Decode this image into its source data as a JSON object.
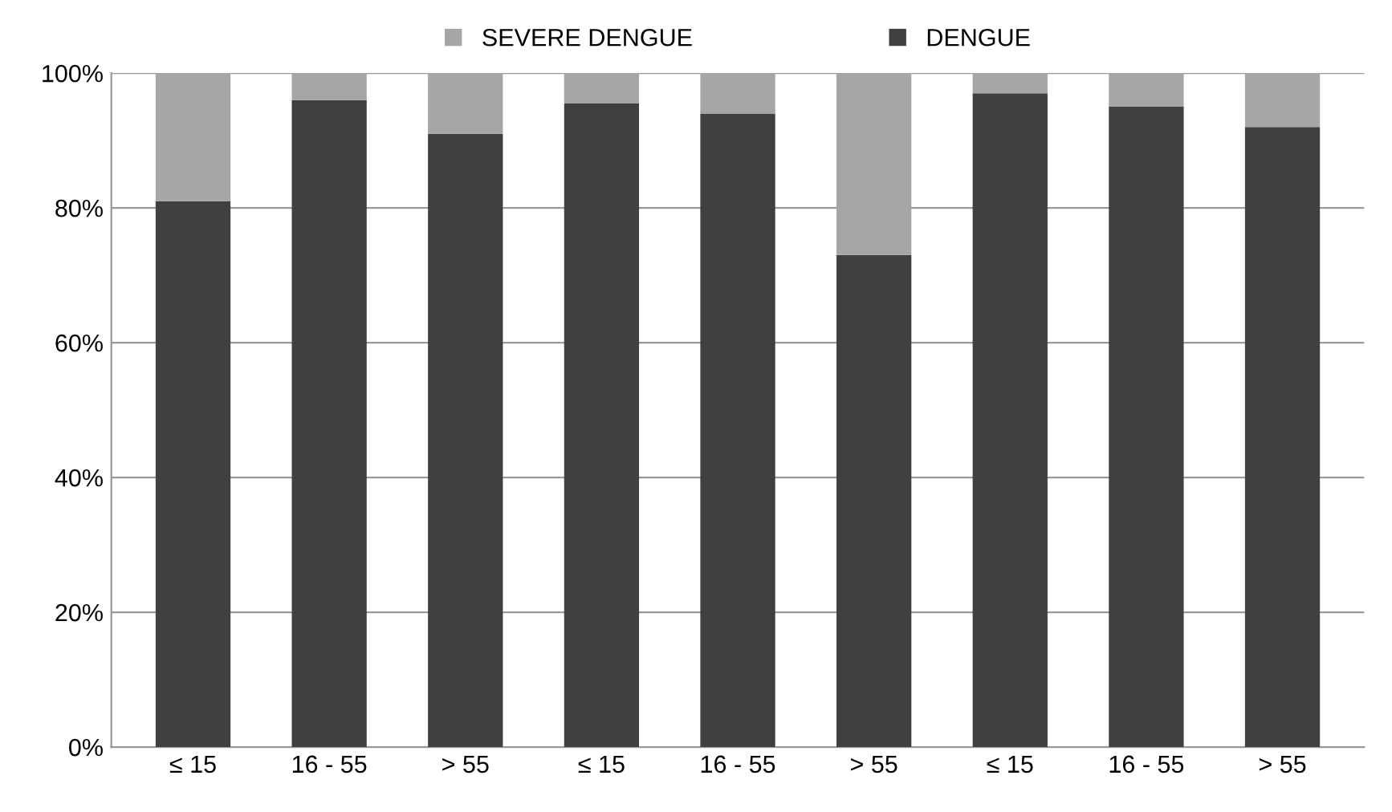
{
  "chart_data": {
    "type": "bar",
    "stacked": true,
    "categories": [
      "≤ 15",
      "16 - 55",
      "> 55",
      "≤ 15",
      "16 - 55",
      "> 55",
      "≤ 15",
      "16 - 55",
      "> 55"
    ],
    "series": [
      {
        "name": "DENGUE",
        "color": "#404040",
        "values": [
          81,
          96,
          91,
          95.5,
          94,
          73,
          97,
          95,
          92
        ]
      },
      {
        "name": "SEVERE DENGUE",
        "color": "#a6a6a6",
        "values": [
          19,
          4,
          9,
          4.5,
          6,
          27,
          3,
          5,
          8
        ]
      }
    ],
    "ylim": [
      0,
      100
    ],
    "yticks": [
      {
        "value": 0,
        "label": "0%"
      },
      {
        "value": 20,
        "label": "20%"
      },
      {
        "value": 40,
        "label": "40%"
      },
      {
        "value": 60,
        "label": "60%"
      },
      {
        "value": 80,
        "label": "80%"
      },
      {
        "value": 100,
        "label": "100%"
      }
    ],
    "grid": "y",
    "legend": "top"
  }
}
